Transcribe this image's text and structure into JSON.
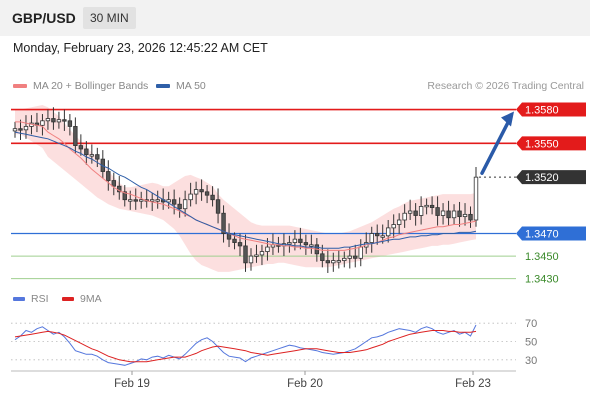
{
  "header": {
    "symbol": "GBP/USD",
    "timeframe": "30 MIN"
  },
  "datetime": "Monday, February 23, 2026 12:45:22 AM CET",
  "legend": {
    "ma20_label": "MA 20 + Bollinger Bands",
    "ma50_label": "MA 50",
    "ma20_color": "#f08080",
    "ma50_color": "#2f5fa8"
  },
  "credit": "Research © 2026 Trading Central",
  "rsi_legend": {
    "rsi_label": "RSI",
    "ma_label": "9MA",
    "rsi_color": "#5577dd",
    "ma_color": "#dd2222"
  },
  "colors": {
    "resistance": "#e31b1b",
    "support": "#9fcf8f",
    "current": "#333333",
    "pivot": "#2f6fd6",
    "arrow": "#2a5aa8",
    "up_candle": "#ffffff",
    "down_candle": "#555555"
  },
  "chart_data": [
    {
      "type": "candlestick",
      "ylim": [
        1.3427,
        1.3592
      ],
      "x_ticks": [
        "Feb 19",
        "Feb 20",
        "Feb 23"
      ],
      "current_price": "1.3520",
      "levels": [
        {
          "label": "1.3580",
          "value": 1.358,
          "kind": "resistance"
        },
        {
          "label": "1.3550",
          "value": 1.355,
          "kind": "resistance"
        },
        {
          "label": "1.3520",
          "value": 1.352,
          "kind": "current"
        },
        {
          "label": "1.3470",
          "value": 1.347,
          "kind": "pivot"
        },
        {
          "label": "1.3450",
          "value": 1.345,
          "kind": "support"
        },
        {
          "label": "1.3430",
          "value": 1.343,
          "kind": "support"
        }
      ],
      "closes": [
        1.3563,
        1.3562,
        1.3565,
        1.3568,
        1.3566,
        1.357,
        1.3572,
        1.3569,
        1.3571,
        1.357,
        1.3565,
        1.3548,
        1.3545,
        1.354,
        1.354,
        1.3536,
        1.3525,
        1.3517,
        1.3512,
        1.3507,
        1.35,
        1.35,
        1.3499,
        1.35,
        1.3499,
        1.35,
        1.35,
        1.3498,
        1.35,
        1.3496,
        1.3492,
        1.35,
        1.3505,
        1.3509,
        1.3507,
        1.3504,
        1.35,
        1.3488,
        1.347,
        1.3465,
        1.3462,
        1.3459,
        1.3444,
        1.345,
        1.3451,
        1.3454,
        1.3458,
        1.346,
        1.3459,
        1.3461,
        1.3462,
        1.3465,
        1.3462,
        1.346,
        1.346,
        1.3452,
        1.3446,
        1.3444,
        1.3446,
        1.3446,
        1.3448,
        1.345,
        1.3448,
        1.3458,
        1.3462,
        1.347,
        1.3468,
        1.3468,
        1.3475,
        1.3478,
        1.3482,
        1.3488,
        1.349,
        1.3486,
        1.3494,
        1.3495,
        1.3493,
        1.3486,
        1.349,
        1.3484,
        1.349,
        1.3485,
        1.3487,
        1.3482,
        1.352
      ],
      "ma20": [
        1.3569,
        1.3569,
        1.3568,
        1.3567,
        1.3566,
        1.3565,
        1.356,
        1.3557,
        1.3554,
        1.355,
        1.3545,
        1.3541,
        1.3537,
        1.3532,
        1.3527,
        1.3523,
        1.3519,
        1.3515,
        1.3511,
        1.3508,
        1.3506,
        1.3505,
        1.3503,
        1.3501,
        1.3499,
        1.3498,
        1.3497,
        1.3496,
        1.3494,
        1.3492,
        1.349,
        1.3487,
        1.3485,
        1.3482,
        1.348,
        1.3478,
        1.3476,
        1.3474,
        1.3472,
        1.347,
        1.3468,
        1.3466,
        1.3465,
        1.3464,
        1.3463,
        1.3462,
        1.3461,
        1.346,
        1.346,
        1.3459,
        1.3459,
        1.3458,
        1.3458,
        1.3457,
        1.3457,
        1.3456,
        1.3455,
        1.3455,
        1.3455,
        1.3455,
        1.3455,
        1.3456,
        1.3457,
        1.3458,
        1.346,
        1.3461,
        1.3462,
        1.3464,
        1.3466,
        1.3467,
        1.3469,
        1.347,
        1.3471,
        1.3472,
        1.3473,
        1.3474,
        1.3475,
        1.3476,
        1.3476,
        1.3477,
        1.3478,
        1.3478,
        1.3479,
        1.348,
        1.3481
      ],
      "ma50": [
        1.356,
        1.3559,
        1.3558,
        1.3557,
        1.3556,
        1.3555,
        1.3554,
        1.3552,
        1.355,
        1.3548,
        1.3546,
        1.3543,
        1.3541,
        1.3538,
        1.3536,
        1.3533,
        1.353,
        1.3528,
        1.3525,
        1.3522,
        1.352,
        1.3517,
        1.3514,
        1.3511,
        1.3509,
        1.3506,
        1.3503,
        1.35,
        1.3497,
        1.3494,
        1.3491,
        1.3488,
        1.3485,
        1.3482,
        1.348,
        1.3478,
        1.3476,
        1.3474,
        1.3472,
        1.347,
        1.3469,
        1.3468,
        1.3467,
        1.3466,
        1.3465,
        1.3464,
        1.3463,
        1.3462,
        1.3461,
        1.346,
        1.346,
        1.3459,
        1.3459,
        1.3458,
        1.3458,
        1.3458,
        1.3457,
        1.3457,
        1.3457,
        1.3457,
        1.3458,
        1.3458,
        1.3459,
        1.346,
        1.3461,
        1.3461,
        1.3462,
        1.3463,
        1.3464,
        1.3465,
        1.3465,
        1.3466,
        1.3467,
        1.3467,
        1.3468,
        1.3468,
        1.3469,
        1.3469,
        1.347,
        1.347,
        1.347,
        1.3471,
        1.3471,
        1.3471,
        1.3472
      ],
      "bb_upper": [
        1.358,
        1.358,
        1.3581,
        1.3582,
        1.3583,
        1.3584,
        1.3582,
        1.3578,
        1.3574,
        1.3568,
        1.3562,
        1.3557,
        1.3552,
        1.3547,
        1.3542,
        1.3537,
        1.3532,
        1.3526,
        1.352,
        1.3515,
        1.3511,
        1.3511,
        1.3512,
        1.3513,
        1.3514,
        1.3515,
        1.3514,
        1.3512,
        1.3512,
        1.3515,
        1.3518,
        1.3521,
        1.3522,
        1.352,
        1.3518,
        1.3515,
        1.3512,
        1.3505,
        1.35,
        1.3496,
        1.3492,
        1.3488,
        1.3484,
        1.348,
        1.3478,
        1.3477,
        1.3477,
        1.3477,
        1.3477,
        1.3477,
        1.3477,
        1.3476,
        1.3475,
        1.3474,
        1.3473,
        1.3472,
        1.3471,
        1.347,
        1.347,
        1.347,
        1.3471,
        1.3472,
        1.3474,
        1.3476,
        1.3478,
        1.348,
        1.3483,
        1.3486,
        1.3489,
        1.3492,
        1.3494,
        1.3497,
        1.3499,
        1.35,
        1.3501,
        1.3502,
        1.3503,
        1.3504,
        1.3505,
        1.3505,
        1.3505,
        1.3505,
        1.3505,
        1.3505,
        1.3506
      ],
      "bb_lower": [
        1.3558,
        1.3558,
        1.3555,
        1.3552,
        1.3549,
        1.3546,
        1.3538,
        1.3534,
        1.353,
        1.3526,
        1.3522,
        1.3518,
        1.3514,
        1.351,
        1.3506,
        1.3502,
        1.3499,
        1.3496,
        1.3494,
        1.3492,
        1.3491,
        1.349,
        1.3489,
        1.3488,
        1.3487,
        1.3486,
        1.3484,
        1.3482,
        1.3478,
        1.3474,
        1.3468,
        1.346,
        1.3452,
        1.3446,
        1.3442,
        1.344,
        1.3438,
        1.3436,
        1.3436,
        1.3436,
        1.3437,
        1.3438,
        1.3439,
        1.344,
        1.3441,
        1.3442,
        1.3443,
        1.3443,
        1.3444,
        1.3444,
        1.3443,
        1.3442,
        1.3441,
        1.344,
        1.344,
        1.344,
        1.344,
        1.344,
        1.3441,
        1.3442,
        1.3443,
        1.3444,
        1.3445,
        1.3446,
        1.3447,
        1.3448,
        1.3449,
        1.345,
        1.3451,
        1.3452,
        1.3453,
        1.3454,
        1.3455,
        1.3456,
        1.3457,
        1.3458,
        1.3459,
        1.3459,
        1.346,
        1.346,
        1.3461,
        1.3462,
        1.3463,
        1.3464,
        1.3465
      ]
    },
    {
      "type": "line",
      "title": "RSI",
      "ylim": [
        20,
        80
      ],
      "y_ticks": [
        "70",
        "50",
        "30"
      ],
      "series": [
        {
          "name": "RSI",
          "values": [
            52,
            56,
            62,
            60,
            64,
            66,
            62,
            58,
            60,
            55,
            48,
            40,
            38,
            36,
            36,
            34,
            30,
            27,
            26,
            25,
            24,
            26,
            28,
            31,
            30,
            33,
            34,
            32,
            35,
            33,
            31,
            36,
            42,
            48,
            52,
            54,
            50,
            44,
            38,
            34,
            33,
            32,
            28,
            32,
            34,
            36,
            38,
            40,
            42,
            44,
            46,
            45,
            43,
            42,
            41,
            40,
            38,
            37,
            36,
            37,
            38,
            40,
            42,
            46,
            50,
            54,
            55,
            57,
            60,
            62,
            64,
            63,
            62,
            60,
            64,
            66,
            64,
            60,
            58,
            60,
            62,
            58,
            60,
            56,
            68
          ]
        },
        {
          "name": "9MA",
          "values": [
            55,
            56,
            57,
            58,
            59,
            60,
            61,
            60,
            59,
            57,
            54,
            51,
            48,
            45,
            42,
            40,
            37,
            34,
            32,
            30,
            29,
            28,
            28,
            28,
            28,
            29,
            30,
            31,
            32,
            33,
            33,
            33,
            35,
            37,
            40,
            42,
            44,
            45,
            44,
            43,
            42,
            41,
            40,
            38,
            37,
            36,
            35,
            36,
            37,
            38,
            39,
            40,
            41,
            42,
            42,
            42,
            41,
            40,
            39,
            38,
            38,
            38,
            39,
            40,
            41,
            43,
            45,
            47,
            50,
            52,
            54,
            56,
            58,
            59,
            60,
            61,
            62,
            62,
            62,
            61,
            61,
            60,
            60,
            60,
            61
          ]
        }
      ]
    }
  ]
}
